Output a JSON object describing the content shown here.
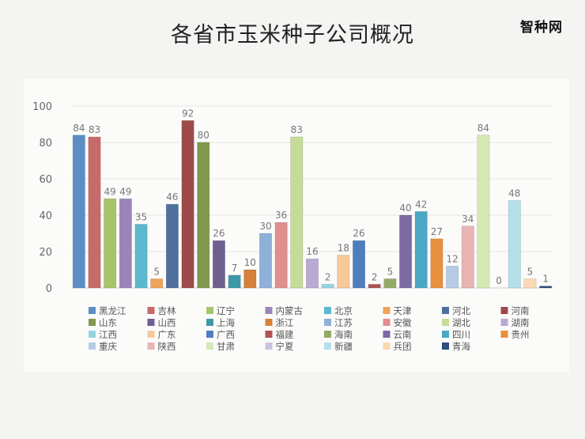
{
  "page": {
    "title": "各省市玉米种子公司概况",
    "brand": "智种网"
  },
  "chart_data": {
    "type": "bar",
    "title": "",
    "xlabel": "",
    "ylabel": "",
    "ylim": [
      0,
      100
    ],
    "yticks": [
      0,
      20,
      40,
      60,
      80,
      100
    ],
    "grid": true,
    "legend_position": "bottom",
    "categories": [
      "黑龙江",
      "吉林",
      "辽宁",
      "内蒙古",
      "北京",
      "天津",
      "河北",
      "河南",
      "山东",
      "山西",
      "上海",
      "浙江",
      "江苏",
      "安徽",
      "湖北",
      "湖南",
      "江西",
      "广东",
      "广西",
      "福建",
      "海南",
      "云南",
      "四川",
      "贵州",
      "重庆",
      "陕西",
      "甘肃",
      "宁夏",
      "新疆",
      "兵团",
      "青海"
    ],
    "values": [
      84,
      83,
      49,
      49,
      35,
      5,
      46,
      92,
      80,
      26,
      7,
      10,
      30,
      36,
      83,
      16,
      2,
      18,
      26,
      2,
      5,
      40,
      42,
      27,
      12,
      34,
      84,
      0,
      48,
      5,
      1
    ],
    "colors": [
      "#5b8ec4",
      "#c96a6a",
      "#a7c46a",
      "#9a85b8",
      "#5bb8cf",
      "#f0a35c",
      "#4f6f9e",
      "#9c4a4a",
      "#7f9a4e",
      "#6e5f91",
      "#3d98a8",
      "#d6803a",
      "#8fb0d8",
      "#e08e8e",
      "#c4dc98",
      "#b9aad3",
      "#94d4e0",
      "#f7c89a",
      "#4f7ebd",
      "#b05252",
      "#93aa67",
      "#7b6aa4",
      "#4aa8c4",
      "#e8903d",
      "#b7cbe6",
      "#e8b4b4",
      "#d6e8b4",
      "#cdc1e0",
      "#b4e0ea",
      "#fad8b4",
      "#2f4d7a"
    ]
  }
}
